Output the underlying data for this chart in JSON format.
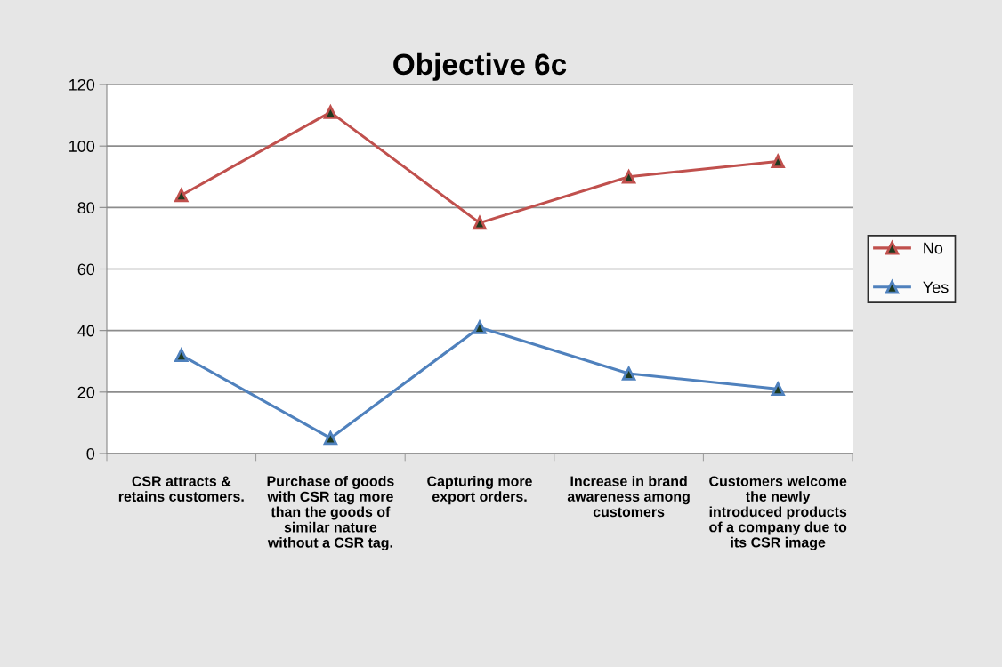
{
  "chart_data": {
    "type": "line",
    "title": "Objective 6c",
    "categories": [
      "CSR attracts & retains customers.",
      "Purchase of goods with CSR tag more than the goods of similar nature without a CSR tag.",
      "Capturing more export orders.",
      "Increase in brand awareness among customers",
      "Customers welcome the newly introduced products of a company due to its CSR image"
    ],
    "series": [
      {
        "name": "No",
        "color": "#c0504d",
        "values": [
          84,
          111,
          75,
          90,
          95
        ]
      },
      {
        "name": "Yes",
        "color": "#4f81bd",
        "values": [
          32,
          5,
          41,
          26,
          21
        ]
      }
    ],
    "ylim": [
      0,
      120
    ],
    "yticks": [
      0,
      20,
      40,
      60,
      80,
      100,
      120
    ],
    "grid": "y",
    "legend": "right",
    "marker": "triangle",
    "line_style": "solid"
  }
}
